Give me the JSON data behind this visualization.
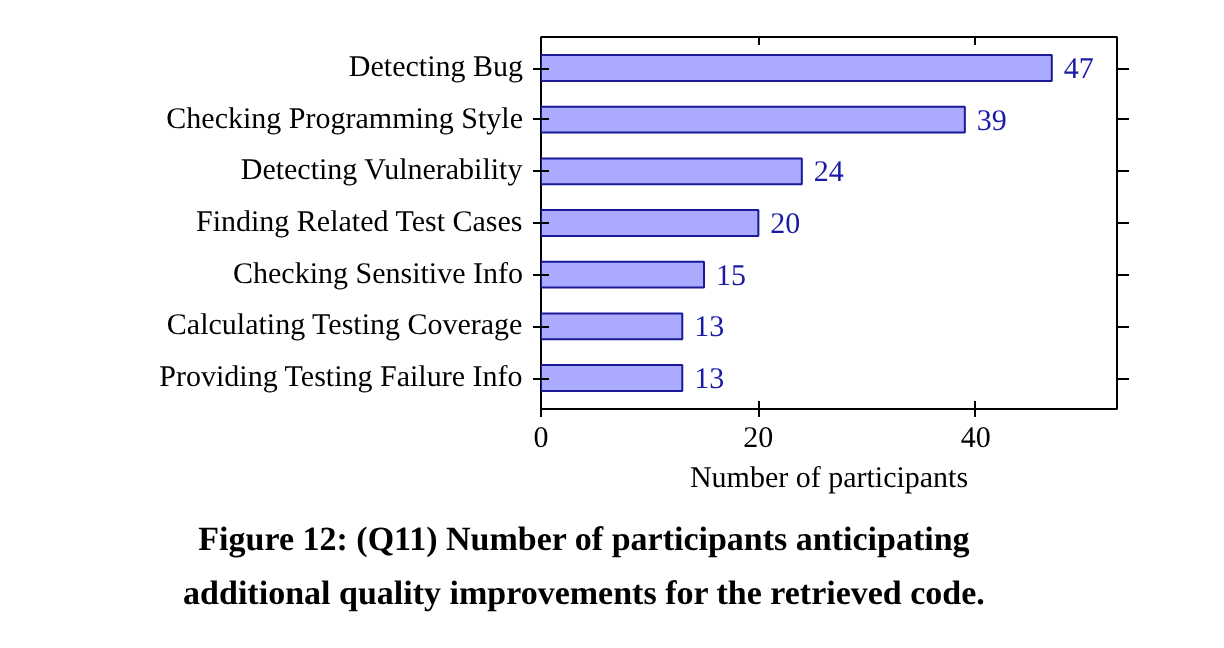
{
  "chart_data": {
    "type": "bar",
    "orientation": "horizontal",
    "categories": [
      "Detecting Bug",
      "Checking Programming Style",
      "Detecting Vulnerability",
      "Finding Related Test Cases",
      "Checking Sensitive Info",
      "Calculating Testing Coverage",
      "Providing Testing Failure Info"
    ],
    "values": [
      47,
      39,
      24,
      20,
      15,
      13,
      13
    ],
    "color": "#aaaaff",
    "xlim": [
      0,
      53
    ],
    "xticks": [
      0,
      20,
      40
    ],
    "xlabel": "Number of participants",
    "data_labels": true,
    "grid": false,
    "annotations": [
      "Figure 12: (Q11) Number of participants anticipating\nadditional quality improvements for the retrieved code."
    ]
  }
}
